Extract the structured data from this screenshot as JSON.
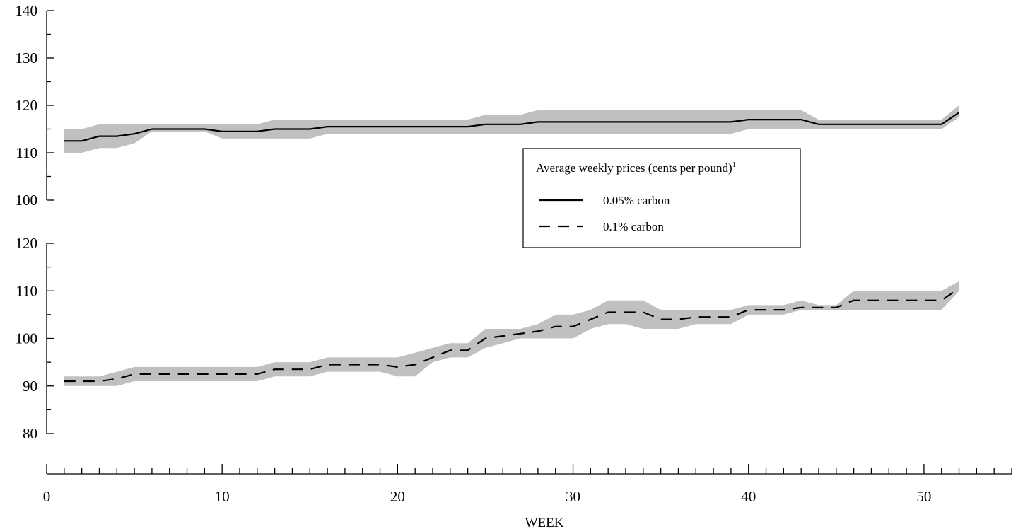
{
  "chart_data": {
    "type": "line",
    "xlabel": "WEEK",
    "xlim": [
      0,
      55
    ],
    "xticks": [
      0,
      10,
      20,
      30,
      40,
      50
    ],
    "legend": {
      "title": "Average weekly prices (cents per pound)",
      "title_footnote": "1",
      "placement": "center-right",
      "entries": [
        {
          "label": "0.05% carbon",
          "style": "solid"
        },
        {
          "label": "0.1% carbon",
          "style": "dashed"
        }
      ]
    },
    "panels": [
      {
        "name": "0.05% carbon",
        "ylim": [
          100,
          140
        ],
        "yticks": [
          100,
          110,
          120,
          130,
          140
        ],
        "line_style": "solid",
        "band_color": "#c0c0c0",
        "x": [
          1,
          2,
          3,
          4,
          5,
          6,
          7,
          8,
          9,
          10,
          11,
          12,
          13,
          14,
          15,
          16,
          17,
          18,
          19,
          20,
          21,
          22,
          23,
          24,
          25,
          26,
          27,
          28,
          29,
          30,
          31,
          32,
          33,
          34,
          35,
          36,
          37,
          38,
          39,
          40,
          41,
          42,
          43,
          44,
          45,
          46,
          47,
          48,
          49,
          50,
          51,
          52
        ],
        "values": [
          112.5,
          112.5,
          113.5,
          113.5,
          114,
          115,
          115,
          115,
          115,
          114.5,
          114.5,
          114.5,
          115,
          115,
          115,
          115.5,
          115.5,
          115.5,
          115.5,
          115.5,
          115.5,
          115.5,
          115.5,
          115.5,
          116,
          116,
          116,
          116.5,
          116.5,
          116.5,
          116.5,
          116.5,
          116.5,
          116.5,
          116.5,
          116.5,
          116.5,
          116.5,
          116.5,
          117,
          117,
          117,
          117,
          116,
          116,
          116,
          116,
          116,
          116,
          116,
          116,
          118.5
        ],
        "low": [
          110,
          110,
          111,
          111,
          112,
          114.5,
          114.5,
          114.5,
          114.5,
          113,
          113,
          113,
          113,
          113,
          113,
          114,
          114,
          114,
          114,
          114,
          114,
          114,
          114,
          114,
          114,
          114,
          114,
          114,
          114,
          114,
          114,
          114,
          114,
          114,
          114,
          114,
          114,
          114,
          114,
          115,
          115,
          115,
          115,
          115,
          115,
          115,
          115,
          115,
          115,
          115,
          115,
          117.5
        ],
        "high": [
          115,
          115,
          116,
          116,
          116,
          116,
          116,
          116,
          116,
          116,
          116,
          116,
          117,
          117,
          117,
          117,
          117,
          117,
          117,
          117,
          117,
          117,
          117,
          117,
          118,
          118,
          118,
          119,
          119,
          119,
          119,
          119,
          119,
          119,
          119,
          119,
          119,
          119,
          119,
          119,
          119,
          119,
          119,
          117,
          117,
          117,
          117,
          117,
          117,
          117,
          117,
          120
        ]
      },
      {
        "name": "0.1% carbon",
        "ylim": [
          80,
          120
        ],
        "yticks": [
          80,
          90,
          100,
          110,
          120
        ],
        "line_style": "dashed",
        "band_color": "#c0c0c0",
        "x": [
          1,
          2,
          3,
          4,
          5,
          6,
          7,
          8,
          9,
          10,
          11,
          12,
          13,
          14,
          15,
          16,
          17,
          18,
          19,
          20,
          21,
          22,
          23,
          24,
          25,
          26,
          27,
          28,
          29,
          30,
          31,
          32,
          33,
          34,
          35,
          36,
          37,
          38,
          39,
          40,
          41,
          42,
          43,
          44,
          45,
          46,
          47,
          48,
          49,
          50,
          51,
          52
        ],
        "values": [
          91,
          91,
          91,
          91.5,
          92.5,
          92.5,
          92.5,
          92.5,
          92.5,
          92.5,
          92.5,
          92.5,
          93.5,
          93.5,
          93.5,
          94.5,
          94.5,
          94.5,
          94.5,
          94,
          94.5,
          96,
          97.5,
          97.5,
          100,
          100.5,
          101,
          101.5,
          102.5,
          102.5,
          104,
          105.5,
          105.5,
          105.5,
          104,
          104,
          104.5,
          104.5,
          104.5,
          106,
          106,
          106,
          106.5,
          106.5,
          106.5,
          108,
          108,
          108,
          108,
          108,
          108,
          110.5
        ],
        "low": [
          90,
          90,
          90,
          90,
          91,
          91,
          91,
          91,
          91,
          91,
          91,
          91,
          92,
          92,
          92,
          93,
          93,
          93,
          93,
          92,
          92,
          95,
          96,
          96,
          98,
          99,
          100,
          100,
          100,
          100,
          102,
          103,
          103,
          102,
          102,
          102,
          103,
          103,
          103,
          105,
          105,
          105,
          106,
          106,
          106,
          106,
          106,
          106,
          106,
          106,
          106,
          110
        ],
        "high": [
          92,
          92,
          92,
          93,
          94,
          94,
          94,
          94,
          94,
          94,
          94,
          94,
          95,
          95,
          95,
          96,
          96,
          96,
          96,
          96,
          97,
          98,
          99,
          99,
          102,
          102,
          102,
          103,
          105,
          105,
          106,
          108,
          108,
          108,
          106,
          106,
          106,
          106,
          106,
          107,
          107,
          107,
          108,
          107,
          107,
          110,
          110,
          110,
          110,
          110,
          110,
          112
        ]
      }
    ]
  }
}
